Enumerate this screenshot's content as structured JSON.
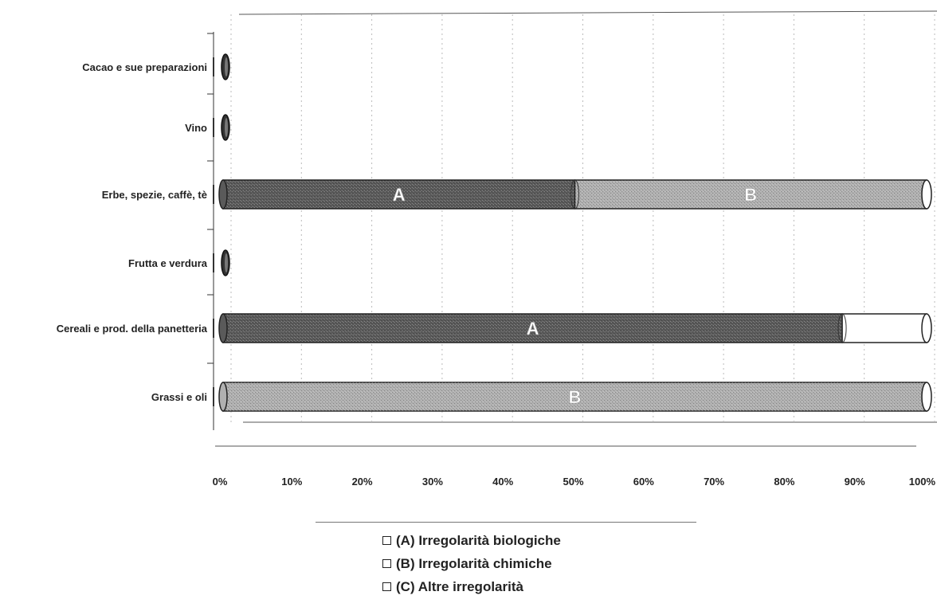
{
  "chart_data": {
    "type": "bar",
    "orientation": "horizontal",
    "stacked": true,
    "categories": [
      "Cacao e sue preparazioni",
      "Vino",
      "Erbe, spezie, caffè, tè",
      "Frutta e verdura",
      "Cereali e prod. della panetteria",
      "Grassi e oli"
    ],
    "series": [
      {
        "label": "A",
        "values": [
          0,
          0,
          50,
          0,
          88,
          0
        ]
      },
      {
        "label": "B",
        "values": [
          0,
          0,
          50,
          0,
          0,
          100
        ]
      },
      {
        "label": "C",
        "values": [
          0,
          0,
          0,
          0,
          12,
          0
        ]
      }
    ],
    "series_colors": [
      "#5a5a5a",
      "#b0b0b0",
      "#ffffff"
    ],
    "xlim": [
      0,
      100
    ],
    "x_ticks": [
      "0%",
      "10%",
      "20%",
      "30%",
      "40%",
      "50%",
      "60%",
      "70%",
      "80%",
      "90%",
      "100%"
    ],
    "grid": true,
    "legend_position": "bottom",
    "legend": [
      "(A) Irregolarità biologiche",
      "(B) Irregolarità chimiche",
      "(C) Altre irregolarità"
    ]
  }
}
